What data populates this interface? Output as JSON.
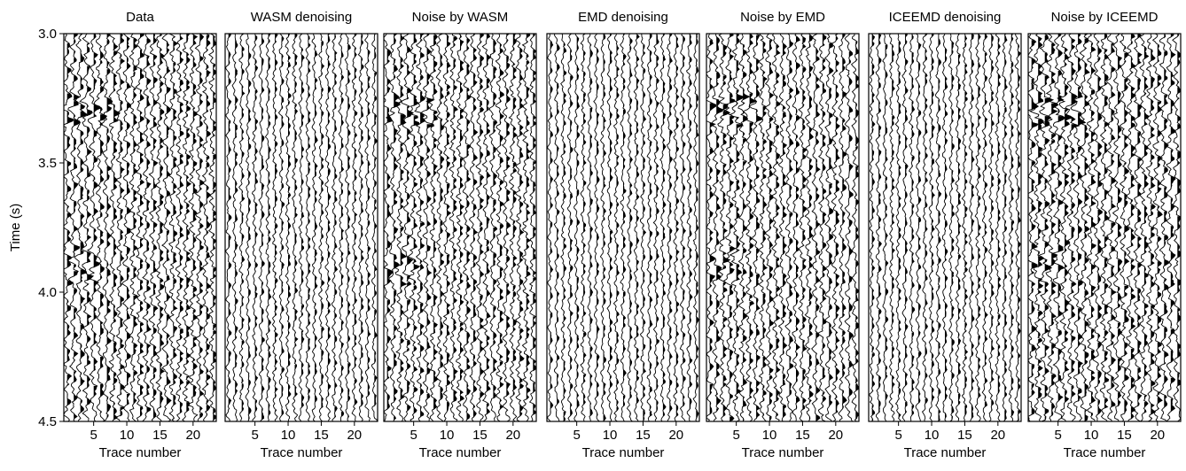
{
  "chart_data": {
    "type": "wiggle",
    "ylabel": "Time (s)",
    "ylim": [
      3.0,
      4.5
    ],
    "yticks": [
      "3.0",
      "3.5",
      "4.0",
      "4.5"
    ],
    "xlabel": "Trace number",
    "xlim": [
      0.5,
      23.5
    ],
    "xticks": [
      "5",
      "10",
      "15",
      "20"
    ],
    "trace_count": 23,
    "panels": [
      {
        "title": "Data",
        "kind": "raw"
      },
      {
        "title": "WASM denoising",
        "kind": "denoised"
      },
      {
        "title": "Noise by WASM",
        "kind": "noise"
      },
      {
        "title": "EMD denoising",
        "kind": "denoised"
      },
      {
        "title": "Noise by EMD",
        "kind": "noise"
      },
      {
        "title": "ICEEMD denoising",
        "kind": "denoised"
      },
      {
        "title": "Noise by ICEEMD",
        "kind": "noise_strong"
      }
    ],
    "colors": {
      "trace": "#000000",
      "frame": "#000000",
      "background": "#ffffff"
    }
  }
}
